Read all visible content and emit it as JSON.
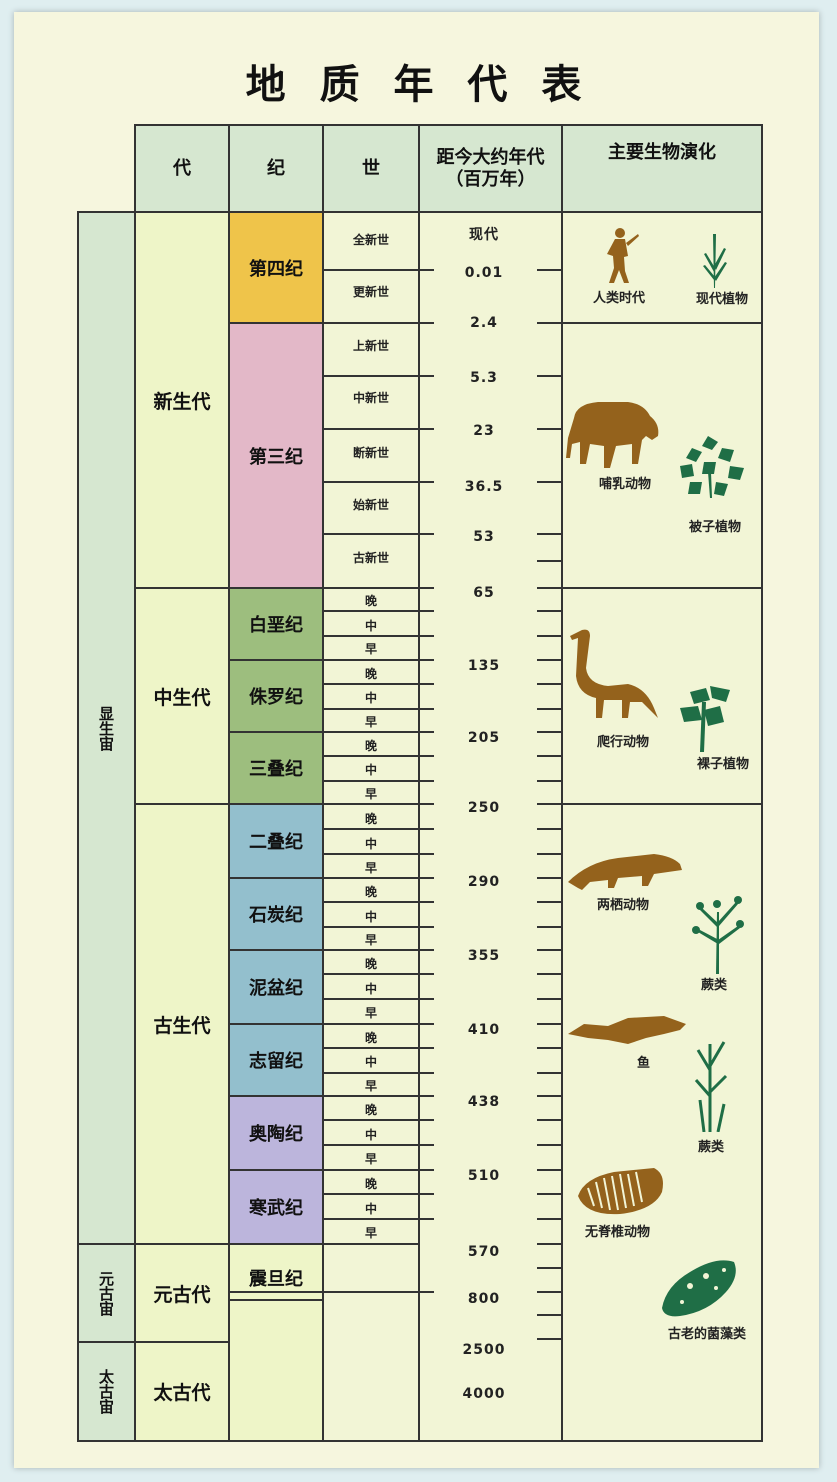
{
  "title": "地 质 年 代 表",
  "headers": {
    "era": "代",
    "period": "纪",
    "epoch": "世",
    "age_line1": "距今大约年代",
    "age_line2": "（百万年）",
    "life": "主要生物演化"
  },
  "eons": {
    "phanerozoic": "显生宙",
    "proterozoic": "元古宙",
    "archean": "太古宙"
  },
  "eras": {
    "cenozoic": "新生代",
    "mesozoic": "中生代",
    "paleozoic": "古生代",
    "proterozoic": "元古代",
    "archean": "太古代"
  },
  "periods": {
    "quaternary": "第四纪",
    "tertiary": "第三纪",
    "cretaceous": "白垩纪",
    "jurassic": "侏罗纪",
    "triassic": "三叠纪",
    "permian": "二叠纪",
    "carboniferous": "石炭纪",
    "devonian": "泥盆纪",
    "silurian": "志留纪",
    "ordovician": "奥陶纪",
    "cambrian": "寒武纪",
    "sinian": "震旦纪"
  },
  "epochs": {
    "holocene": "全新世",
    "pleistocene": "更新世",
    "pliocene": "上新世",
    "miocene": "中新世",
    "oligocene": "断新世",
    "eocene": "始新世",
    "paleocene": "古新世",
    "late": "晚",
    "middle": "中",
    "early": "早"
  },
  "ages": {
    "now": "现代",
    "a001": "0.01",
    "a24": "2.4",
    "a53": "5.3",
    "a23": "23",
    "a365": "36.5",
    "a53b": "53",
    "a65": "65",
    "a135": "135",
    "a205": "205",
    "a250": "250",
    "a290": "290",
    "a355": "355",
    "a410": "410",
    "a438": "438",
    "a510": "510",
    "a570": "570",
    "a800": "800",
    "a2500": "2500",
    "a4000": "4000"
  },
  "life": {
    "human": "人类时代",
    "modern_plants": "现代植物",
    "mammals": "哺乳动物",
    "angiosperms": "被子植物",
    "reptiles": "爬行动物",
    "gymnosperms": "裸子植物",
    "amphibians": "两栖动物",
    "ferns1": "蕨类",
    "fish": "鱼",
    "ferns2": "蕨类",
    "invertebrates": "无脊椎动物",
    "algae": "古老的菌藻类"
  },
  "colors": {
    "quaternary": "#efc44a",
    "tertiary": "#e3b8c8",
    "mesozoic": "#9dbe7e",
    "paleozoic": "#93bfcd",
    "early_paleozoic": "#bcb5dc",
    "header": "#d6e7d0",
    "era": "#eef5c8",
    "brown": "#94621c",
    "green": "#1f6e46"
  },
  "icons": [
    "human-icon",
    "grass-icon",
    "mammal-icon",
    "angiosperm-icon",
    "dinosaur-icon",
    "gymnosperm-icon",
    "amphibian-icon",
    "fern-icon",
    "fish-icon",
    "invertebrate-icon",
    "algae-icon"
  ]
}
